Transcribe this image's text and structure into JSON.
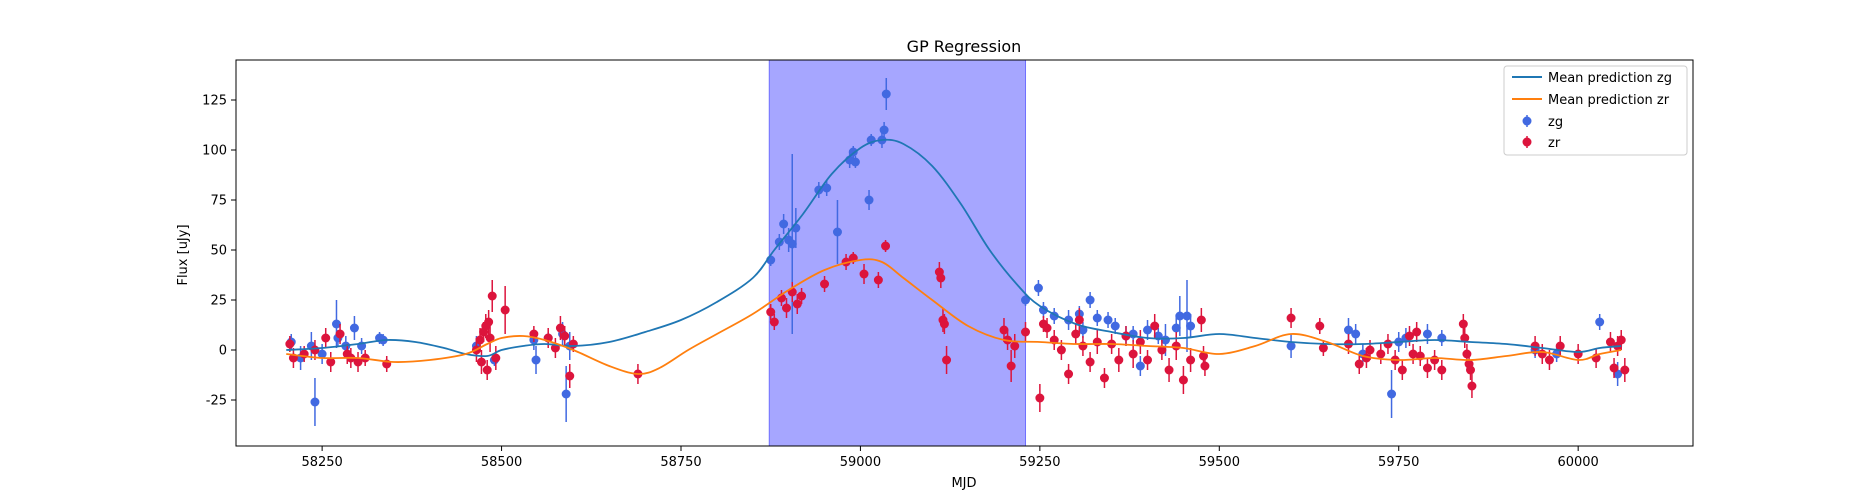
{
  "chart_data": {
    "type": "scatter",
    "title": "GP Regression",
    "xlabel": "MJD",
    "ylabel": "Flux [uJy]",
    "xlim": [
      58130,
      60160
    ],
    "ylim": [
      -48,
      145
    ],
    "xticks": [
      58250,
      58500,
      58750,
      59000,
      59250,
      59500,
      59750,
      60000
    ],
    "yticks": [
      -25,
      0,
      25,
      50,
      75,
      100,
      125
    ],
    "grid": false,
    "legend_position": "top-right",
    "shaded_region": {
      "x_start": 58873,
      "x_end": 59230,
      "color": "#a6a6ff"
    },
    "lines": [
      {
        "name": "Mean prediction zg",
        "color": "#1f77b4",
        "x": [
          58200,
          58250,
          58300,
          58340,
          58380,
          58420,
          58450,
          58480,
          58500,
          58530,
          58560,
          58600,
          58650,
          58700,
          58750,
          58800,
          58850,
          58880,
          58920,
          58960,
          59000,
          59030,
          59060,
          59100,
          59140,
          59180,
          59220,
          59250,
          59300,
          59350,
          59400,
          59450,
          59500,
          59550,
          59600,
          59650,
          59700,
          59750,
          59800,
          59850,
          59900,
          59950,
          60000,
          60030,
          60060
        ],
        "y": [
          0,
          1,
          3,
          5,
          4,
          1,
          -2,
          -3,
          0,
          2,
          3,
          2,
          4,
          9,
          15,
          24,
          36,
          50,
          68,
          88,
          101,
          105,
          103,
          92,
          73,
          50,
          32,
          22,
          13,
          9,
          6,
          6,
          8,
          6,
          4,
          3,
          3,
          4,
          5,
          4,
          3,
          1,
          -1,
          1,
          2
        ]
      },
      {
        "name": "Mean prediction zr",
        "color": "#ff7f0e",
        "x": [
          58200,
          58250,
          58300,
          58350,
          58400,
          58450,
          58480,
          58500,
          58530,
          58560,
          58600,
          58650,
          58690,
          58720,
          58760,
          58800,
          58850,
          58900,
          58950,
          59000,
          59030,
          59060,
          59100,
          59150,
          59200,
          59250,
          59300,
          59350,
          59400,
          59450,
          59500,
          59550,
          59600,
          59650,
          59700,
          59750,
          59800,
          59850,
          59900,
          59950,
          60000,
          60030,
          60060
        ],
        "y": [
          -2,
          -4,
          -4,
          -6,
          -5,
          -2,
          3,
          6,
          7,
          5,
          0,
          -8,
          -12,
          -9,
          0,
          8,
          18,
          30,
          40,
          45,
          44,
          36,
          25,
          12,
          5,
          4,
          3,
          3,
          2,
          1,
          -2,
          2,
          8,
          4,
          -3,
          -5,
          -4,
          -5,
          -3,
          -1,
          -5,
          -2,
          0
        ]
      }
    ],
    "series": [
      {
        "name": "zg",
        "color": "#4169e1",
        "points": [
          [
            58207,
            4,
            4
          ],
          [
            58220,
            -4,
            6
          ],
          [
            58235,
            2,
            7
          ],
          [
            58240,
            -26,
            12
          ],
          [
            58250,
            -2,
            5
          ],
          [
            58270,
            13,
            12
          ],
          [
            58272,
            6,
            4
          ],
          [
            58283,
            2,
            5
          ],
          [
            58295,
            11,
            6
          ],
          [
            58305,
            2,
            4
          ],
          [
            58330,
            6,
            3
          ],
          [
            58335,
            5,
            3
          ],
          [
            58465,
            2,
            5
          ],
          [
            58490,
            -5,
            3
          ],
          [
            58545,
            5,
            5
          ],
          [
            58548,
            -5,
            7
          ],
          [
            58565,
            6,
            3
          ],
          [
            58585,
            8,
            6
          ],
          [
            58590,
            -22,
            14
          ],
          [
            58595,
            2,
            7
          ],
          [
            58875,
            45,
            3
          ],
          [
            58887,
            54,
            4
          ],
          [
            58893,
            63,
            5
          ],
          [
            58900,
            55,
            6
          ],
          [
            58905,
            53,
            45
          ],
          [
            58910,
            61,
            10
          ],
          [
            58942,
            80,
            4
          ],
          [
            58953,
            81,
            4
          ],
          [
            58968,
            59,
            16
          ],
          [
            58985,
            95,
            4
          ],
          [
            58990,
            99,
            3
          ],
          [
            58993,
            94,
            3
          ],
          [
            59012,
            75,
            5
          ],
          [
            59015,
            105,
            3
          ],
          [
            59030,
            105,
            4
          ],
          [
            59033,
            110,
            4
          ],
          [
            59036,
            128,
            8
          ],
          [
            59230,
            25,
            3
          ],
          [
            59248,
            31,
            4
          ],
          [
            59255,
            20,
            4
          ],
          [
            59270,
            17,
            4
          ],
          [
            59290,
            15,
            5
          ],
          [
            59305,
            18,
            4
          ],
          [
            59310,
            10,
            4
          ],
          [
            59320,
            25,
            4
          ],
          [
            59330,
            16,
            4
          ],
          [
            59345,
            15,
            4
          ],
          [
            59355,
            12,
            4
          ],
          [
            59370,
            7,
            5
          ],
          [
            59380,
            8,
            4
          ],
          [
            59390,
            -8,
            5
          ],
          [
            59400,
            10,
            5
          ],
          [
            59415,
            7,
            4
          ],
          [
            59425,
            5,
            8
          ],
          [
            59440,
            11,
            6
          ],
          [
            59445,
            17,
            10
          ],
          [
            59455,
            17,
            18
          ],
          [
            59460,
            12,
            6
          ],
          [
            59600,
            2,
            6
          ],
          [
            59680,
            10,
            6
          ],
          [
            59690,
            8,
            5
          ],
          [
            59700,
            -2,
            5
          ],
          [
            59740,
            -22,
            12
          ],
          [
            59750,
            4,
            5
          ],
          [
            59760,
            6,
            5
          ],
          [
            59790,
            8,
            5
          ],
          [
            59810,
            6,
            4
          ],
          [
            59940,
            0,
            4
          ],
          [
            59970,
            -2,
            4
          ],
          [
            60030,
            14,
            4
          ],
          [
            60055,
            -12,
            6
          ]
        ]
      },
      {
        "name": "zr",
        "color": "#dc143c",
        "points": [
          [
            58205,
            3,
            4
          ],
          [
            58210,
            -4,
            5
          ],
          [
            58225,
            -2,
            4
          ],
          [
            58240,
            0,
            5
          ],
          [
            58255,
            6,
            5
          ],
          [
            58262,
            -6,
            5
          ],
          [
            58275,
            8,
            5
          ],
          [
            58285,
            -2,
            5
          ],
          [
            58290,
            -4,
            5
          ],
          [
            58300,
            -6,
            5
          ],
          [
            58310,
            -4,
            4
          ],
          [
            58340,
            -7,
            4
          ],
          [
            58465,
            0,
            6
          ],
          [
            58470,
            5,
            6
          ],
          [
            58472,
            -6,
            6
          ],
          [
            58475,
            9,
            5
          ],
          [
            58478,
            12,
            6
          ],
          [
            58480,
            -10,
            5
          ],
          [
            58482,
            14,
            6
          ],
          [
            58484,
            6,
            7
          ],
          [
            58487,
            27,
            8
          ],
          [
            58492,
            -4,
            6
          ],
          [
            58505,
            20,
            12
          ],
          [
            58545,
            8,
            4
          ],
          [
            58565,
            6,
            5
          ],
          [
            58575,
            1,
            5
          ],
          [
            58582,
            11,
            6
          ],
          [
            58588,
            7,
            5
          ],
          [
            58595,
            -13,
            6
          ],
          [
            58600,
            3,
            4
          ],
          [
            58690,
            -12,
            5
          ],
          [
            58875,
            19,
            4
          ],
          [
            58880,
            14,
            4
          ],
          [
            58890,
            26,
            4
          ],
          [
            58897,
            21,
            5
          ],
          [
            58905,
            29,
            5
          ],
          [
            58912,
            23,
            5
          ],
          [
            58918,
            27,
            4
          ],
          [
            58950,
            33,
            4
          ],
          [
            58980,
            44,
            4
          ],
          [
            58990,
            46,
            3
          ],
          [
            59005,
            38,
            5
          ],
          [
            59025,
            35,
            4
          ],
          [
            59035,
            52,
            3
          ],
          [
            59110,
            39,
            5
          ],
          [
            59112,
            36,
            5
          ],
          [
            59115,
            15,
            6
          ],
          [
            59117,
            13,
            5
          ],
          [
            59120,
            -5,
            7
          ],
          [
            59200,
            10,
            6
          ],
          [
            59205,
            5,
            5
          ],
          [
            59210,
            -8,
            8
          ],
          [
            59215,
            2,
            6
          ],
          [
            59230,
            9,
            5
          ],
          [
            59250,
            -24,
            7
          ],
          [
            59255,
            13,
            4
          ],
          [
            59260,
            11,
            5
          ],
          [
            59270,
            5,
            5
          ],
          [
            59280,
            0,
            5
          ],
          [
            59290,
            -12,
            5
          ],
          [
            59300,
            8,
            5
          ],
          [
            59305,
            15,
            6
          ],
          [
            59310,
            2,
            5
          ],
          [
            59320,
            -6,
            5
          ],
          [
            59330,
            4,
            6
          ],
          [
            59340,
            -14,
            5
          ],
          [
            59350,
            3,
            5
          ],
          [
            59360,
            -5,
            6
          ],
          [
            59370,
            7,
            5
          ],
          [
            59380,
            -2,
            7
          ],
          [
            59390,
            4,
            6
          ],
          [
            59400,
            -5,
            5
          ],
          [
            59410,
            12,
            6
          ],
          [
            59420,
            0,
            5
          ],
          [
            59430,
            -10,
            6
          ],
          [
            59440,
            2,
            7
          ],
          [
            59450,
            -15,
            7
          ],
          [
            59460,
            -5,
            6
          ],
          [
            59475,
            15,
            6
          ],
          [
            59478,
            -3,
            5
          ],
          [
            59480,
            -8,
            5
          ],
          [
            59600,
            16,
            5
          ],
          [
            59640,
            12,
            4
          ],
          [
            59645,
            1,
            4
          ],
          [
            59680,
            3,
            5
          ],
          [
            59695,
            -7,
            5
          ],
          [
            59705,
            -4,
            5
          ],
          [
            59710,
            0,
            5
          ],
          [
            59725,
            -2,
            5
          ],
          [
            59735,
            3,
            5
          ],
          [
            59745,
            -5,
            5
          ],
          [
            59755,
            -10,
            5
          ],
          [
            59765,
            7,
            5
          ],
          [
            59770,
            -2,
            5
          ],
          [
            59775,
            9,
            5
          ],
          [
            59780,
            -3,
            5
          ],
          [
            59790,
            -9,
            5
          ],
          [
            59800,
            -5,
            5
          ],
          [
            59810,
            -10,
            5
          ],
          [
            59840,
            13,
            5
          ],
          [
            59842,
            6,
            5
          ],
          [
            59845,
            -2,
            5
          ],
          [
            59848,
            -7,
            5
          ],
          [
            59850,
            -10,
            5
          ],
          [
            59852,
            -18,
            6
          ],
          [
            59940,
            2,
            5
          ],
          [
            59950,
            -2,
            5
          ],
          [
            59960,
            -5,
            5
          ],
          [
            59975,
            2,
            5
          ],
          [
            60000,
            -2,
            5
          ],
          [
            60025,
            -4,
            5
          ],
          [
            60045,
            4,
            5
          ],
          [
            60050,
            -9,
            5
          ],
          [
            60055,
            2,
            5
          ],
          [
            60060,
            5,
            5
          ],
          [
            60065,
            -10,
            6
          ]
        ]
      }
    ]
  }
}
